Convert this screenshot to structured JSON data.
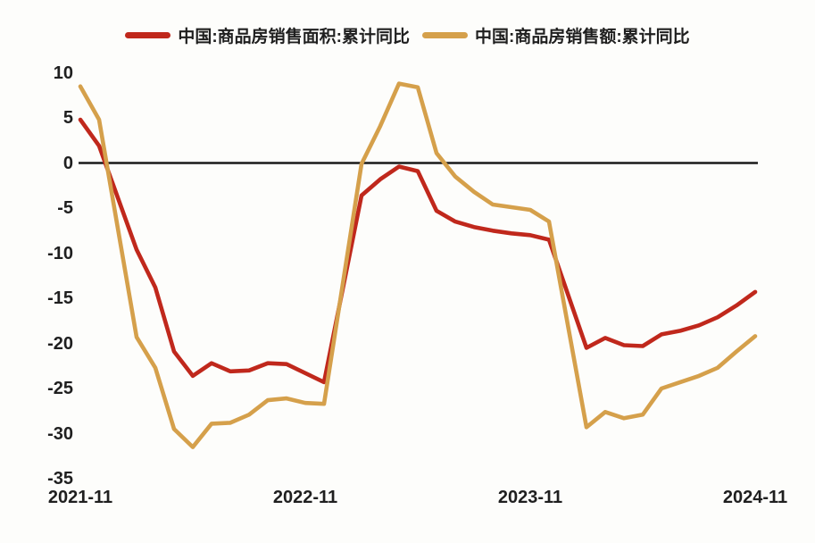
{
  "colors": {
    "background": "#fdfdfb",
    "text": "#1f1f1f",
    "zero_line": "#1a1a1a",
    "series_area_red": "#c0281c",
    "series_value_gold": "#d5a04b"
  },
  "chart_data": {
    "type": "line",
    "x": [
      "2021-11",
      "2021-12",
      "2022-01",
      "2022-02",
      "2022-03",
      "2022-04",
      "2022-05",
      "2022-06",
      "2022-07",
      "2022-08",
      "2022-09",
      "2022-10",
      "2022-11",
      "2022-12",
      "2023-01",
      "2023-02",
      "2023-03",
      "2023-04",
      "2023-05",
      "2023-06",
      "2023-07",
      "2023-08",
      "2023-09",
      "2023-10",
      "2023-11",
      "2023-12",
      "2024-01",
      "2024-02",
      "2024-03",
      "2024-04",
      "2024-05",
      "2024-06",
      "2024-07",
      "2024-08",
      "2024-09",
      "2024-10",
      "2024-11"
    ],
    "series": [
      {
        "name": "中国:商品房销售面积:累计同比",
        "color": "#c0281c",
        "values": [
          4.8,
          1.9,
          null,
          -9.6,
          -13.8,
          -20.9,
          -23.6,
          -22.2,
          -23.1,
          -23.0,
          -22.2,
          -22.3,
          -23.3,
          -24.3,
          null,
          -3.6,
          -1.8,
          -0.4,
          -0.9,
          -5.3,
          -6.5,
          -7.1,
          -7.5,
          -7.8,
          -8.0,
          -8.5,
          null,
          -20.5,
          -19.4,
          -20.2,
          -20.3,
          -19.0,
          -18.6,
          -18.0,
          -17.1,
          -15.8,
          -14.3
        ]
      },
      {
        "name": "中国:商品房销售额:累计同比",
        "color": "#d5a04b",
        "values": [
          8.5,
          4.8,
          null,
          -19.3,
          -22.7,
          -29.5,
          -31.5,
          -28.9,
          -28.8,
          -27.9,
          -26.3,
          -26.1,
          -26.6,
          -26.7,
          null,
          -0.1,
          4.1,
          8.8,
          8.4,
          1.1,
          -1.5,
          -3.2,
          -4.6,
          -4.9,
          -5.2,
          -6.5,
          null,
          -29.3,
          -27.6,
          -28.3,
          -27.9,
          -25.0,
          -24.3,
          -23.6,
          -22.7,
          -20.9,
          -19.2
        ]
      }
    ],
    "yticks": [
      10,
      5,
      0,
      -5,
      -10,
      -15,
      -20,
      -25,
      -30,
      -35
    ],
    "ylim": [
      -35,
      10
    ],
    "xticks": [
      {
        "index": 0,
        "label": "2021-11"
      },
      {
        "index": 12,
        "label": "2022-11"
      },
      {
        "index": 24,
        "label": "2023-11"
      },
      {
        "index": 36,
        "label": "2024-11"
      }
    ],
    "zero_line": true,
    "grid": false,
    "legend_position": "top"
  }
}
